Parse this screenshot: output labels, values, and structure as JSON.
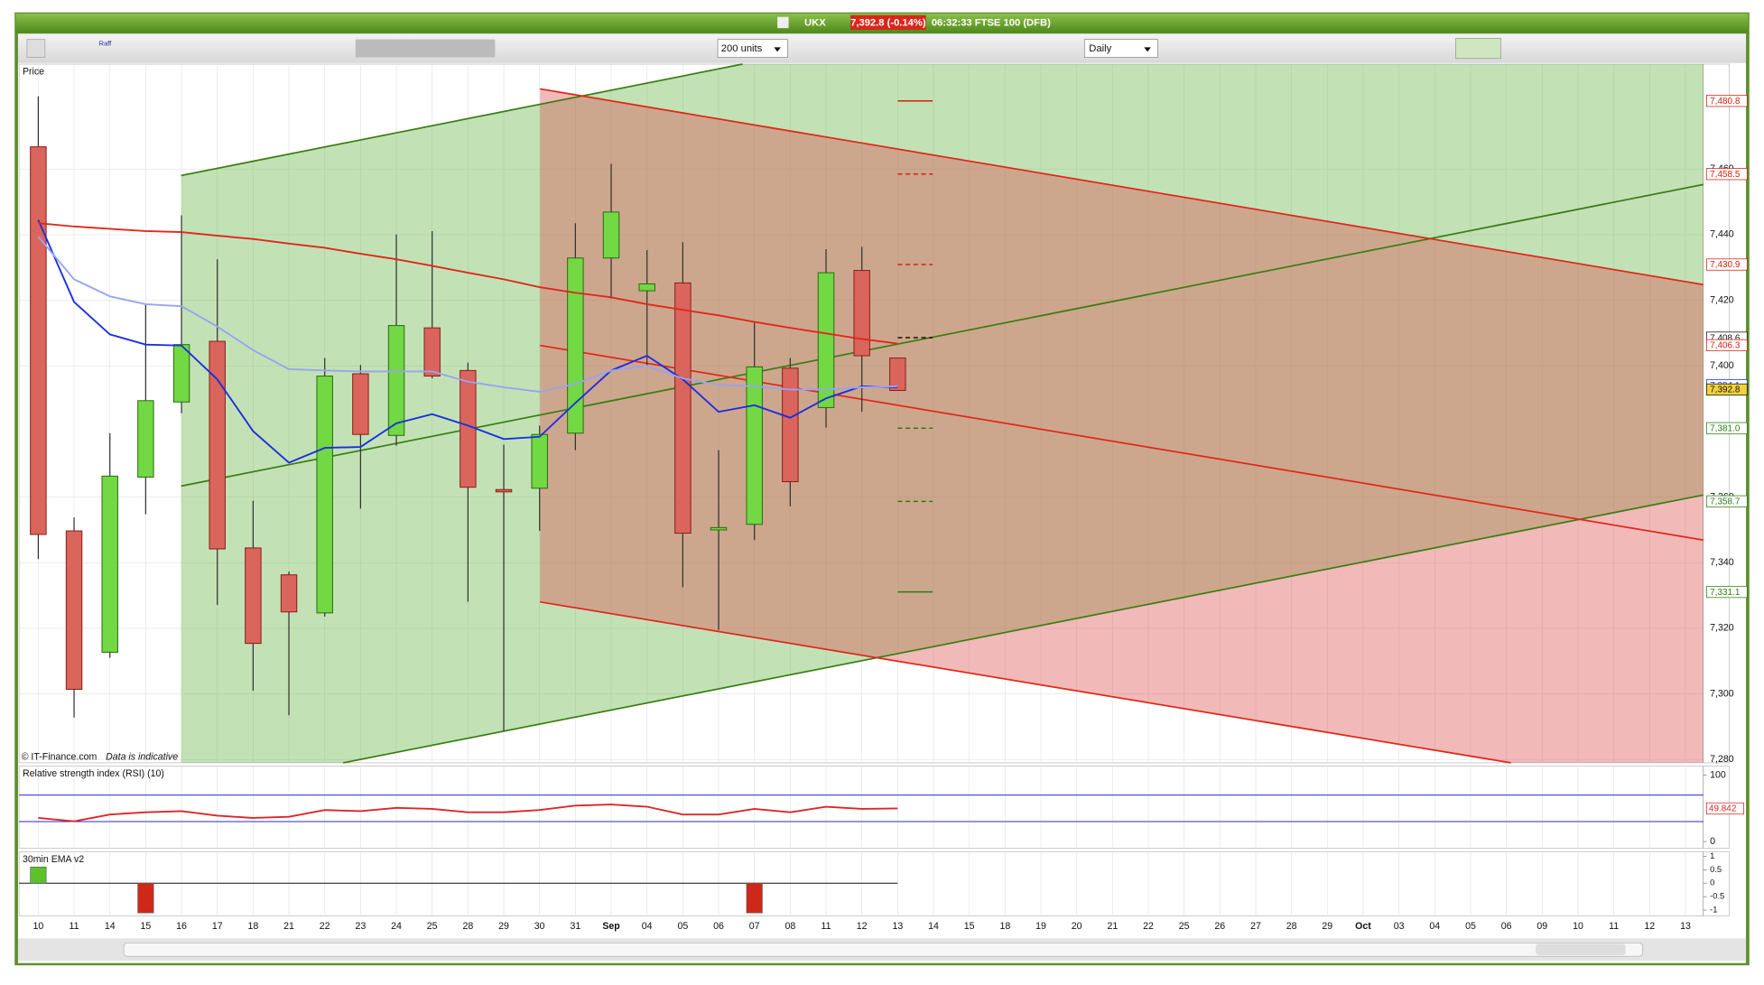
{
  "window": {
    "symbol": "UKX",
    "quote": "7,392.8 (-0.14%)",
    "info": "06:32:33 FTSE 100 (DFB)"
  },
  "toolbar": {
    "raff": "Raff",
    "size": "200 units",
    "interval": "Daily"
  },
  "x_axis": {
    "labels": [
      "10",
      "11",
      "14",
      "15",
      "16",
      "17",
      "18",
      "21",
      "22",
      "23",
      "24",
      "25",
      "28",
      "29",
      "30",
      "31",
      "Sep",
      "04",
      "05",
      "06",
      "07",
      "08",
      "11",
      "12",
      "13",
      "14",
      "15",
      "18",
      "19",
      "20",
      "21",
      "22",
      "25",
      "26",
      "27",
      "28",
      "29",
      "Oct",
      "03",
      "04",
      "05",
      "06",
      "09",
      "10",
      "11",
      "12",
      "13"
    ]
  },
  "chart_data": [
    {
      "type": "candlestick",
      "title": "Price",
      "copyright": "© IT-Finance.com",
      "note": "Data is indicative",
      "open": [
        7466.8,
        7349.7,
        7312.7,
        7366.1,
        7389.0,
        7407.5,
        7344.5,
        7336.3,
        7324.7,
        7397.6,
        7378.8,
        7411.6,
        7398.6,
        7362.3,
        7362.7,
        7379.5,
        7432.9,
        7422.9,
        7425.3,
        7350.0,
        7351.7,
        7399.3,
        7387.3,
        7429.1,
        7402.4
      ],
      "high": [
        7482.2,
        7353.8,
        7379.5,
        7418.8,
        7445.9,
        7432.5,
        7358.9,
        7337.3,
        7402.4,
        7400.3,
        7440.1,
        7441.1,
        7401.0,
        7376.0,
        7381.8,
        7443.5,
        7461.6,
        7435.3,
        7437.7,
        7374.3,
        7413.4,
        7402.4,
        7435.6,
        7436.3,
        7402.4
      ],
      "low": [
        7341.1,
        7292.8,
        7311.0,
        7354.8,
        7385.6,
        7327.1,
        7301.0,
        7293.5,
        7323.6,
        7356.5,
        7375.7,
        7396.2,
        7328.1,
        7288.7,
        7349.7,
        7374.3,
        7420.5,
        7400.0,
        7332.5,
        7319.5,
        7346.9,
        7357.2,
        7381.2,
        7386.0,
        7392.5
      ],
      "close": [
        7348.6,
        7301.4,
        7366.4,
        7389.4,
        7406.5,
        7344.2,
        7315.4,
        7325.0,
        7396.9,
        7379.1,
        7412.3,
        7396.9,
        7363.0,
        7361.6,
        7379.1,
        7432.9,
        7446.9,
        7425.0,
        7349.0,
        7350.7,
        7399.7,
        7364.7,
        7428.4,
        7403.1,
        7392.5
      ],
      "up_color": "#72d843",
      "down_color": "#d9655c",
      "series": [
        {
          "color": "#1c2ee0",
          "values": [
            7444.5,
            7419.5,
            7409.6,
            7406.5,
            7406.2,
            7395.9,
            7380.1,
            7370.5,
            7375.0,
            7375.3,
            7382.5,
            7385.3,
            7381.8,
            7377.7,
            7378.4,
            7388.7,
            7398.6,
            7403.1,
            7395.9,
            7386.0,
            7388.0,
            7384.2,
            7390.1,
            7393.8,
            7393.5
          ]
        },
        {
          "color": "#9aa3f0",
          "values": [
            7439.4,
            7426.4,
            7421.2,
            7418.8,
            7418.2,
            7412.0,
            7404.8,
            7399.0,
            7398.6,
            7398.3,
            7398.3,
            7398.3,
            7395.2,
            7393.5,
            7392.1,
            7394.5,
            7398.6,
            7400.0,
            7396.2,
            7394.2,
            7393.8,
            7392.8,
            7392.8,
            7393.5,
            7393.8
          ]
        },
        {
          "color": "#e0281a",
          "values": [
            7443.5,
            7442.5,
            7441.8,
            7441.1,
            7440.8,
            7439.7,
            7438.7,
            7437.3,
            7436.0,
            7434.2,
            7432.5,
            7430.5,
            7428.4,
            7426.4,
            7424.0,
            7422.3,
            7420.9,
            7418.8,
            7417.1,
            7415.4,
            7413.4,
            7411.6,
            7409.9,
            7408.2,
            7406.8
          ]
        }
      ],
      "ylim": [
        7279,
        7492
      ],
      "yticks": [
        {
          "value": 7280,
          "label": "7,280"
        },
        {
          "value": 7300,
          "label": "7,300"
        },
        {
          "value": 7320,
          "label": "7,320"
        },
        {
          "value": 7340,
          "label": "7,340"
        },
        {
          "value": 7360,
          "label": "7,360"
        },
        {
          "value": 7400,
          "label": "7,400"
        },
        {
          "value": 7420,
          "label": "7,420"
        },
        {
          "value": 7440,
          "label": "7,440"
        },
        {
          "value": 7460,
          "label": "7,460"
        }
      ],
      "levels": [
        {
          "value": 7480.8,
          "label": "7,480.8",
          "color": "#d02010",
          "style": "solid"
        },
        {
          "value": 7458.5,
          "label": "7,458.5",
          "color": "#d02010",
          "style": "dashed"
        },
        {
          "value": 7430.9,
          "label": "7,430.9",
          "color": "#d02010",
          "style": "dashed"
        },
        {
          "value": 7408.6,
          "label": "7,408.6",
          "color": "#111111",
          "style": "dashed"
        },
        {
          "value": 7406.3,
          "label": "7,406.3",
          "color": "#d02010",
          "style": "none"
        },
        {
          "value": 7394.1,
          "label": "7,394.1",
          "color": "#1c2ee0",
          "style": "none"
        },
        {
          "value": 7392.8,
          "label": "7,392.8",
          "color": "#111111",
          "style": "fill"
        },
        {
          "value": 7381,
          "label": "7,381.0",
          "color": "#2f7a12",
          "style": "dashed"
        },
        {
          "value": 7358.7,
          "label": "7,358.7",
          "color": "#2f7a12",
          "style": "dashed"
        },
        {
          "value": 7331.1,
          "label": "7,331.1",
          "color": "#2f7a12",
          "style": "solid"
        }
      ],
      "grid": true
    },
    {
      "type": "line",
      "title": "Relative strength index (RSI) (10)",
      "series": [
        {
          "color": "#d8282a",
          "values": [
            35.6,
            30.5,
            40.7,
            44.1,
            45.8,
            39.0,
            35.6,
            37.3,
            47.5,
            45.8,
            50.8,
            49.2,
            44.1,
            44.1,
            47.5,
            54.2,
            55.9,
            52.5,
            40.7,
            40.7,
            49.2,
            44.1,
            52.5,
            49.2,
            49.842
          ]
        }
      ],
      "ylim": [
        -10.2,
        113.6
      ],
      "yticks": [
        0,
        100
      ],
      "bands": [
        30,
        70
      ]
    },
    {
      "type": "bar",
      "title": "30min EMA v2",
      "values": [
        0.6,
        0,
        0,
        -1.1,
        0,
        0,
        0,
        0,
        0,
        0,
        0,
        0,
        0,
        0,
        0,
        0,
        0,
        0,
        0,
        0,
        -1.1,
        0,
        0,
        0,
        0
      ],
      "up_color": "#5cc22c",
      "down_color": "#d02818",
      "ylim": [
        -1.21,
        1.17
      ],
      "yticks": [
        1,
        0.5,
        0,
        -0.5,
        -1
      ]
    }
  ]
}
